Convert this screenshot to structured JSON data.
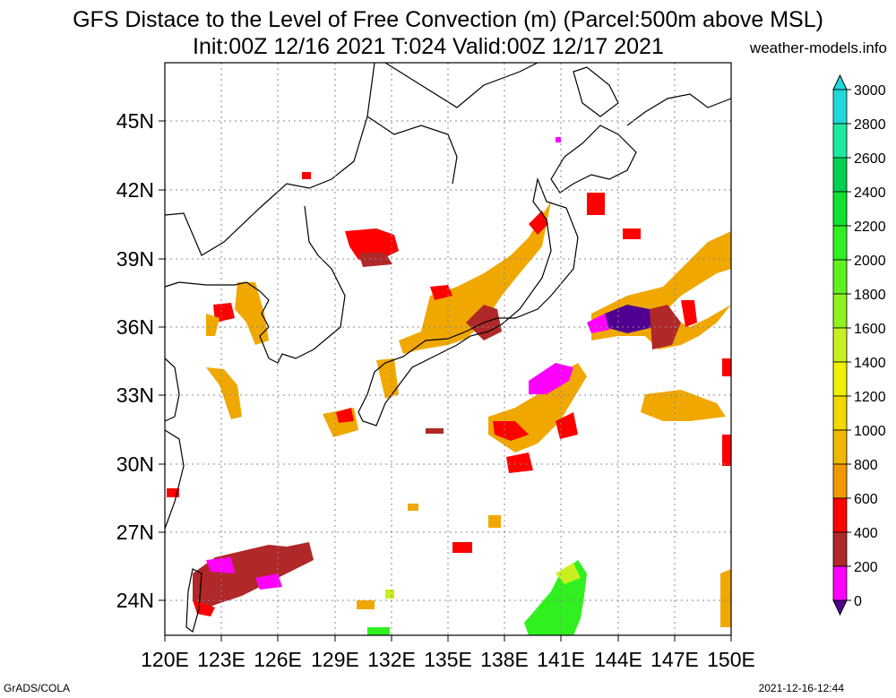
{
  "header": {
    "title_line1": "GFS Distace to the Level of Free Convection (m) (Parcel:500m above MSL)",
    "title_line2": "Init:00Z 12/16 2021 T:024 Valid:00Z 12/17 2021",
    "site": "weather-models.info"
  },
  "footer": {
    "software": "GrADS/COLA",
    "timestamp": "2021-12-16-12:44"
  },
  "map": {
    "lon_labels": [
      "120E",
      "123E",
      "126E",
      "129E",
      "132E",
      "135E",
      "138E",
      "141E",
      "144E",
      "147E",
      "150E"
    ],
    "lat_labels": [
      "45N",
      "42N",
      "39N",
      "36N",
      "33N",
      "30N",
      "27N",
      "24N"
    ],
    "grid": "dotted"
  },
  "colorbar": {
    "labels": [
      "3000",
      "2800",
      "2600",
      "2400",
      "2200",
      "2000",
      "1800",
      "1600",
      "1400",
      "1200",
      "1000",
      "800",
      "600",
      "400",
      "200",
      "0"
    ],
    "colors": [
      "#1fd8d8",
      "#1fe8a0",
      "#00d050",
      "#10e030",
      "#30f020",
      "#60f020",
      "#90f020",
      "#c8f020",
      "#f0f000",
      "#f0d800",
      "#f0b800",
      "#f09800",
      "#ff0000",
      "#b02828",
      "#ff00ff",
      "#500090"
    ]
  }
}
